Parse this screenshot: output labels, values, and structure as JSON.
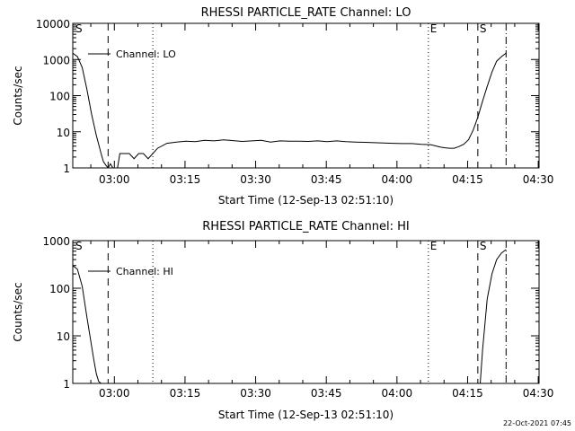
{
  "footer_timestamp": "22-Oct-2021 07:45",
  "chart_data": [
    {
      "type": "line",
      "title": "RHESSI PARTICLE_RATE Channel: LO",
      "xlabel": "Start Time (12-Sep-13 02:51:10)",
      "ylabel": "Counts/sec",
      "x_unit": "minutes after 02:51:10",
      "xlim": [
        0,
        99
      ],
      "ylim": [
        1,
        10000
      ],
      "y_scale": "log",
      "x_ticks": [
        {
          "label": "03:00",
          "value": 8.83
        },
        {
          "label": "03:15",
          "value": 23.83
        },
        {
          "label": "03:30",
          "value": 38.83
        },
        {
          "label": "03:45",
          "value": 53.83
        },
        {
          "label": "04:00",
          "value": 68.83
        },
        {
          "label": "04:15",
          "value": 83.83
        },
        {
          "label": "04:30",
          "value": 98.83
        }
      ],
      "y_ticks": [
        {
          "label": "1",
          "value": 1
        },
        {
          "label": "10",
          "value": 10
        },
        {
          "label": "100",
          "value": 100
        },
        {
          "label": "1000",
          "value": 1000
        },
        {
          "label": "10000",
          "value": 10000
        }
      ],
      "legend": {
        "entries": [
          "Channel: LO"
        ],
        "placement": "top-left"
      },
      "markers": [
        {
          "label": "S",
          "x": 0.2,
          "style": "none"
        },
        {
          "label": "",
          "x": 7.5,
          "style": "dashed"
        },
        {
          "label": "",
          "x": 17,
          "style": "dotted"
        },
        {
          "label": "E",
          "x": 75.5,
          "style": "dotted"
        },
        {
          "label": "S",
          "x": 86,
          "style": "dashed"
        },
        {
          "label": "",
          "x": 92,
          "style": "dash-dot"
        }
      ],
      "series": [
        {
          "name": "Channel: LO",
          "x": [
            0,
            1,
            2,
            3,
            4,
            5,
            6,
            6.5,
            7,
            7.5,
            8,
            8.5,
            9,
            9.5,
            10,
            10.5,
            11,
            12,
            13,
            14,
            15,
            16,
            17,
            18,
            20,
            22,
            24,
            26,
            28,
            30,
            32,
            34,
            36,
            38,
            40,
            42,
            44,
            46,
            48,
            50,
            52,
            54,
            56,
            58,
            60,
            62,
            64,
            66,
            68,
            70,
            72,
            74,
            76,
            78,
            79,
            80,
            81,
            82,
            83,
            84,
            85,
            86,
            87,
            88,
            89,
            90,
            91,
            92
          ],
          "y": [
            1500,
            1200,
            600,
            150,
            30,
            8,
            2.5,
            1.5,
            1.2,
            1,
            1.3,
            1,
            1,
            1,
            2.5,
            2.5,
            2.5,
            2.5,
            1.8,
            2.5,
            2.5,
            1.8,
            2.5,
            3.5,
            4.8,
            5.2,
            5.5,
            5.3,
            5.8,
            5.6,
            6,
            5.7,
            5.4,
            5.6,
            5.8,
            5.2,
            5.6,
            5.5,
            5.5,
            5.4,
            5.6,
            5.3,
            5.6,
            5.3,
            5.2,
            5.1,
            5.0,
            4.9,
            4.8,
            4.7,
            4.7,
            4.5,
            4.4,
            3.8,
            3.6,
            3.5,
            3.5,
            3.9,
            4.5,
            6,
            11,
            25,
            70,
            180,
            450,
            900,
            1200,
            1500
          ]
        }
      ]
    },
    {
      "type": "line",
      "title": "RHESSI PARTICLE_RATE Channel: HI",
      "xlabel": "Start Time (12-Sep-13 02:51:10)",
      "ylabel": "Counts/sec",
      "x_unit": "minutes after 02:51:10",
      "xlim": [
        0,
        99
      ],
      "ylim": [
        1,
        1000
      ],
      "y_scale": "log",
      "x_ticks": [
        {
          "label": "03:00",
          "value": 8.83
        },
        {
          "label": "03:15",
          "value": 23.83
        },
        {
          "label": "03:30",
          "value": 38.83
        },
        {
          "label": "03:45",
          "value": 53.83
        },
        {
          "label": "04:00",
          "value": 68.83
        },
        {
          "label": "04:15",
          "value": 83.83
        },
        {
          "label": "04:30",
          "value": 98.83
        }
      ],
      "y_ticks": [
        {
          "label": "1",
          "value": 1
        },
        {
          "label": "10",
          "value": 10
        },
        {
          "label": "100",
          "value": 100
        },
        {
          "label": "1000",
          "value": 1000
        }
      ],
      "legend": {
        "entries": [
          "Channel: HI"
        ],
        "placement": "top-left"
      },
      "markers": [
        {
          "label": "S",
          "x": 0.2,
          "style": "none"
        },
        {
          "label": "",
          "x": 7.5,
          "style": "dashed"
        },
        {
          "label": "",
          "x": 17,
          "style": "dotted"
        },
        {
          "label": "E",
          "x": 75.5,
          "style": "dotted"
        },
        {
          "label": "S",
          "x": 86,
          "style": "dashed"
        },
        {
          "label": "",
          "x": 92,
          "style": "dash-dot"
        }
      ],
      "series": [
        {
          "name": "Channel: HI",
          "x": [
            0,
            1,
            2,
            3,
            4,
            4.5,
            5,
            5.5,
            6,
            86.5,
            87,
            88,
            89,
            90,
            91,
            92
          ],
          "y": [
            300,
            250,
            110,
            25,
            6,
            3,
            1.6,
            1.1,
            1,
            1,
            5,
            60,
            200,
            400,
            550,
            650
          ]
        }
      ]
    }
  ]
}
